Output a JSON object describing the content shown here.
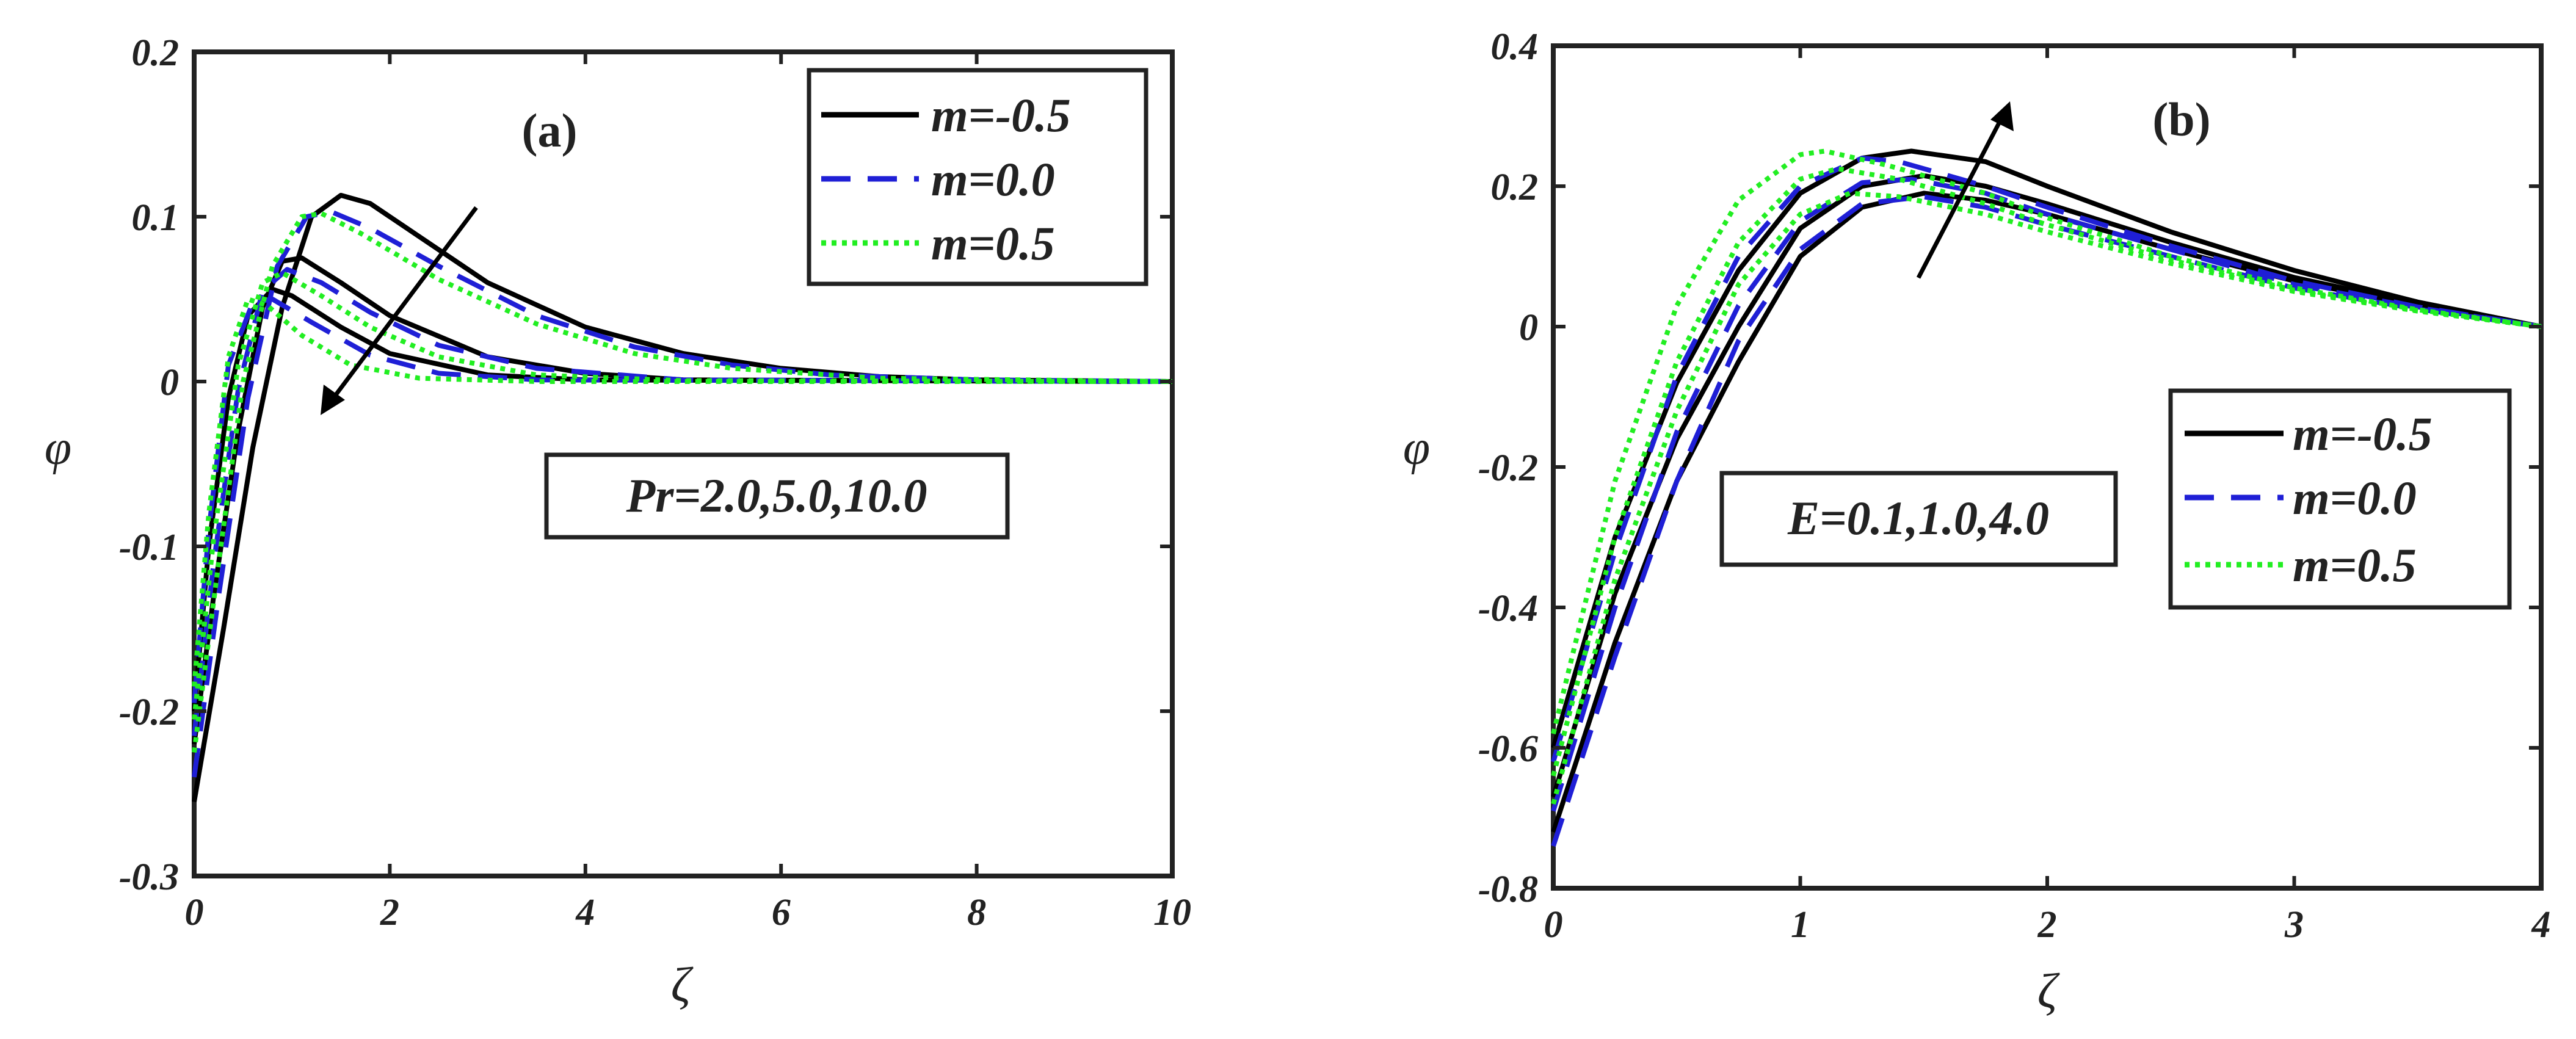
{
  "chart_data": [
    {
      "type": "line",
      "panel_label": "(a)",
      "xlabel": "ζ",
      "ylabel": "φ",
      "xlim": [
        0,
        10
      ],
      "ylim": [
        -0.3,
        0.2
      ],
      "xticks": [
        "0",
        "2",
        "4",
        "6",
        "8",
        "10"
      ],
      "yticks": [
        "-0.3",
        "-0.2",
        "-0.1",
        "0",
        "0.1",
        "0.2"
      ],
      "legend_position": "top-right",
      "legend": [
        {
          "label": "m=-0.5",
          "color": "#000000",
          "style": "solid"
        },
        {
          "label": "m=0.0",
          "color": "#1f1fd6",
          "style": "dashed"
        },
        {
          "label": "m=0.5",
          "color": "#22ee22",
          "style": "dotted"
        }
      ],
      "annotation": "Pr=2.0,5.0,10.0",
      "arrow_direction": "down-left",
      "series": [
        {
          "group": "m=-0.5",
          "color": "#000000",
          "style": "solid",
          "points": [
            [
              0,
              -0.255
            ],
            [
              0.3,
              -0.15
            ],
            [
              0.6,
              -0.04
            ],
            [
              0.9,
              0.045
            ],
            [
              1.2,
              0.1
            ],
            [
              1.5,
              0.113
            ],
            [
              1.8,
              0.108
            ],
            [
              2.2,
              0.092
            ],
            [
              3,
              0.06
            ],
            [
              4,
              0.033
            ],
            [
              5,
              0.017
            ],
            [
              6,
              0.008
            ],
            [
              7,
              0.003
            ],
            [
              8,
              0.001
            ],
            [
              10,
              0
            ]
          ]
        },
        {
          "group": "m=-0.5",
          "color": "#000000",
          "style": "solid",
          "points": [
            [
              0,
              -0.22
            ],
            [
              0.2,
              -0.13
            ],
            [
              0.45,
              -0.03
            ],
            [
              0.7,
              0.045
            ],
            [
              0.9,
              0.073
            ],
            [
              1.1,
              0.075
            ],
            [
              1.5,
              0.06
            ],
            [
              2,
              0.04
            ],
            [
              3,
              0.015
            ],
            [
              4,
              0.005
            ],
            [
              5,
              0.001
            ],
            [
              10,
              0
            ]
          ]
        },
        {
          "group": "m=-0.5",
          "color": "#000000",
          "style": "solid",
          "points": [
            [
              0,
              -0.2
            ],
            [
              0.15,
              -0.1
            ],
            [
              0.35,
              -0.01
            ],
            [
              0.55,
              0.04
            ],
            [
              0.8,
              0.056
            ],
            [
              1,
              0.052
            ],
            [
              1.5,
              0.033
            ],
            [
              2,
              0.017
            ],
            [
              3,
              0.004
            ],
            [
              4,
              0.001
            ],
            [
              10,
              0
            ]
          ]
        },
        {
          "group": "m=0.0",
          "color": "#1f1fd6",
          "style": "dashed",
          "points": [
            [
              0,
              -0.24
            ],
            [
              0.25,
              -0.13
            ],
            [
              0.55,
              -0.01
            ],
            [
              0.85,
              0.07
            ],
            [
              1.15,
              0.1
            ],
            [
              1.4,
              0.103
            ],
            [
              1.8,
              0.093
            ],
            [
              2.5,
              0.07
            ],
            [
              3.5,
              0.04
            ],
            [
              4.5,
              0.021
            ],
            [
              5.5,
              0.01
            ],
            [
              6.5,
              0.004
            ],
            [
              8,
              0.001
            ],
            [
              10,
              0
            ]
          ]
        },
        {
          "group": "m=0.0",
          "color": "#1f1fd6",
          "style": "dashed",
          "points": [
            [
              0,
              -0.215
            ],
            [
              0.2,
              -0.11
            ],
            [
              0.45,
              -0.005
            ],
            [
              0.7,
              0.055
            ],
            [
              0.95,
              0.068
            ],
            [
              1.3,
              0.06
            ],
            [
              1.8,
              0.042
            ],
            [
              2.5,
              0.022
            ],
            [
              3.5,
              0.008
            ],
            [
              5,
              0.001
            ],
            [
              10,
              0
            ]
          ]
        },
        {
          "group": "m=0.0",
          "color": "#1f1fd6",
          "style": "dashed",
          "points": [
            [
              0,
              -0.195
            ],
            [
              0.15,
              -0.09
            ],
            [
              0.35,
              0.01
            ],
            [
              0.6,
              0.048
            ],
            [
              0.8,
              0.05
            ],
            [
              1.2,
              0.036
            ],
            [
              1.8,
              0.016
            ],
            [
              2.5,
              0.005
            ],
            [
              3.5,
              0.001
            ],
            [
              10,
              0
            ]
          ]
        },
        {
          "group": "m=0.5",
          "color": "#22ee22",
          "style": "dotted",
          "points": [
            [
              0,
              -0.225
            ],
            [
              0.25,
              -0.11
            ],
            [
              0.5,
              0.0
            ],
            [
              0.8,
              0.07
            ],
            [
              1.1,
              0.1
            ],
            [
              1.3,
              0.102
            ],
            [
              1.7,
              0.09
            ],
            [
              2.5,
              0.062
            ],
            [
              3.5,
              0.035
            ],
            [
              4.5,
              0.017
            ],
            [
              5.5,
              0.008
            ],
            [
              7,
              0.002
            ],
            [
              10,
              0
            ]
          ]
        },
        {
          "group": "m=0.5",
          "color": "#22ee22",
          "style": "dotted",
          "points": [
            [
              0,
              -0.205
            ],
            [
              0.2,
              -0.095
            ],
            [
              0.45,
              0.01
            ],
            [
              0.7,
              0.06
            ],
            [
              0.9,
              0.066
            ],
            [
              1.3,
              0.052
            ],
            [
              1.8,
              0.033
            ],
            [
              2.5,
              0.015
            ],
            [
              3.5,
              0.004
            ],
            [
              5,
              0.0005
            ],
            [
              10,
              0
            ]
          ]
        },
        {
          "group": "m=0.5",
          "color": "#22ee22",
          "style": "dotted",
          "points": [
            [
              0,
              -0.185
            ],
            [
              0.15,
              -0.08
            ],
            [
              0.35,
              0.015
            ],
            [
              0.55,
              0.05
            ],
            [
              0.75,
              0.046
            ],
            [
              1.1,
              0.028
            ],
            [
              1.6,
              0.01
            ],
            [
              2.3,
              0.002
            ],
            [
              3.5,
              0
            ],
            [
              10,
              0
            ]
          ]
        }
      ]
    },
    {
      "type": "line",
      "panel_label": "(b)",
      "xlabel": "ζ",
      "ylabel": "φ",
      "xlim": [
        0,
        4
      ],
      "ylim": [
        -0.8,
        0.4
      ],
      "xticks": [
        "0",
        "1",
        "2",
        "3",
        "4"
      ],
      "yticks": [
        "-0.8",
        "-0.6",
        "-0.4",
        "-0.2",
        "0",
        "0.2",
        "0.4"
      ],
      "legend_position": "center-right",
      "legend": [
        {
          "label": "m=-0.5",
          "color": "#000000",
          "style": "solid"
        },
        {
          "label": "m=0.0",
          "color": "#1f1fd6",
          "style": "dashed"
        },
        {
          "label": "m=0.5",
          "color": "#22ee22",
          "style": "dotted"
        }
      ],
      "annotation": "E=0.1,1.0,4.0",
      "arrow_direction": "up-right",
      "series": [
        {
          "group": "m=-0.5",
          "color": "#000000",
          "style": "solid",
          "points": [
            [
              0,
              -0.72
            ],
            [
              0.25,
              -0.45
            ],
            [
              0.5,
              -0.22
            ],
            [
              0.75,
              -0.05
            ],
            [
              1,
              0.1
            ],
            [
              1.25,
              0.17
            ],
            [
              1.5,
              0.19
            ],
            [
              1.75,
              0.18
            ],
            [
              2,
              0.16
            ],
            [
              2.5,
              0.11
            ],
            [
              3,
              0.065
            ],
            [
              3.5,
              0.03
            ],
            [
              4,
              0
            ]
          ]
        },
        {
          "group": "m=-0.5",
          "color": "#000000",
          "style": "solid",
          "points": [
            [
              0,
              -0.67
            ],
            [
              0.25,
              -0.38
            ],
            [
              0.5,
              -0.16
            ],
            [
              0.75,
              0.0
            ],
            [
              1,
              0.14
            ],
            [
              1.25,
              0.2
            ],
            [
              1.5,
              0.215
            ],
            [
              1.75,
              0.2
            ],
            [
              2,
              0.175
            ],
            [
              2.5,
              0.12
            ],
            [
              3,
              0.07
            ],
            [
              3.5,
              0.032
            ],
            [
              4,
              0
            ]
          ]
        },
        {
          "group": "m=-0.5",
          "color": "#000000",
          "style": "solid",
          "points": [
            [
              0,
              -0.6
            ],
            [
              0.25,
              -0.3
            ],
            [
              0.5,
              -0.08
            ],
            [
              0.75,
              0.08
            ],
            [
              1,
              0.19
            ],
            [
              1.25,
              0.24
            ],
            [
              1.45,
              0.25
            ],
            [
              1.75,
              0.235
            ],
            [
              2,
              0.2
            ],
            [
              2.5,
              0.135
            ],
            [
              3,
              0.08
            ],
            [
              3.5,
              0.035
            ],
            [
              4,
              0
            ]
          ]
        },
        {
          "group": "m=0.0",
          "color": "#1f1fd6",
          "style": "dashed",
          "points": [
            [
              0,
              -0.74
            ],
            [
              0.25,
              -0.47
            ],
            [
              0.5,
              -0.22
            ],
            [
              0.75,
              -0.02
            ],
            [
              1,
              0.11
            ],
            [
              1.25,
              0.175
            ],
            [
              1.5,
              0.185
            ],
            [
              1.75,
              0.17
            ],
            [
              2,
              0.145
            ],
            [
              2.5,
              0.1
            ],
            [
              3,
              0.055
            ],
            [
              3.5,
              0.025
            ],
            [
              4,
              0
            ]
          ]
        },
        {
          "group": "m=0.0",
          "color": "#1f1fd6",
          "style": "dashed",
          "points": [
            [
              0,
              -0.69
            ],
            [
              0.25,
              -0.4
            ],
            [
              0.5,
              -0.15
            ],
            [
              0.75,
              0.03
            ],
            [
              1,
              0.15
            ],
            [
              1.25,
              0.205
            ],
            [
              1.45,
              0.21
            ],
            [
              1.75,
              0.19
            ],
            [
              2,
              0.16
            ],
            [
              2.5,
              0.11
            ],
            [
              3,
              0.06
            ],
            [
              3.5,
              0.027
            ],
            [
              4,
              0
            ]
          ]
        },
        {
          "group": "m=0.0",
          "color": "#1f1fd6",
          "style": "dashed",
          "points": [
            [
              0,
              -0.62
            ],
            [
              0.25,
              -0.32
            ],
            [
              0.5,
              -0.07
            ],
            [
              0.75,
              0.1
            ],
            [
              1,
              0.2
            ],
            [
              1.25,
              0.24
            ],
            [
              1.4,
              0.235
            ],
            [
              1.75,
              0.2
            ],
            [
              2,
              0.17
            ],
            [
              2.5,
              0.115
            ],
            [
              3,
              0.065
            ],
            [
              3.5,
              0.028
            ],
            [
              4,
              0
            ]
          ]
        },
        {
          "group": "m=0.5",
          "color": "#22ee22",
          "style": "dotted",
          "points": [
            [
              0,
              -0.68
            ],
            [
              0.25,
              -0.36
            ],
            [
              0.5,
              -0.12
            ],
            [
              0.75,
              0.06
            ],
            [
              1,
              0.16
            ],
            [
              1.2,
              0.19
            ],
            [
              1.4,
              0.185
            ],
            [
              1.75,
              0.16
            ],
            [
              2,
              0.135
            ],
            [
              2.5,
              0.09
            ],
            [
              3,
              0.05
            ],
            [
              3.5,
              0.022
            ],
            [
              4,
              0
            ]
          ]
        },
        {
          "group": "m=0.5",
          "color": "#22ee22",
          "style": "dotted",
          "points": [
            [
              0,
              -0.64
            ],
            [
              0.25,
              -0.3
            ],
            [
              0.5,
              -0.05
            ],
            [
              0.75,
              0.12
            ],
            [
              1,
              0.21
            ],
            [
              1.15,
              0.225
            ],
            [
              1.4,
              0.21
            ],
            [
              1.75,
              0.175
            ],
            [
              2,
              0.145
            ],
            [
              2.5,
              0.095
            ],
            [
              3,
              0.052
            ],
            [
              3.5,
              0.023
            ],
            [
              4,
              0
            ]
          ]
        },
        {
          "group": "m=0.5",
          "color": "#22ee22",
          "style": "dotted",
          "points": [
            [
              0,
              -0.58
            ],
            [
              0.25,
              -0.22
            ],
            [
              0.5,
              0.03
            ],
            [
              0.75,
              0.18
            ],
            [
              1,
              0.245
            ],
            [
              1.1,
              0.25
            ],
            [
              1.35,
              0.23
            ],
            [
              1.75,
              0.19
            ],
            [
              2,
              0.155
            ],
            [
              2.5,
              0.1
            ],
            [
              3,
              0.055
            ],
            [
              3.5,
              0.024
            ],
            [
              4,
              0
            ]
          ]
        }
      ]
    }
  ]
}
